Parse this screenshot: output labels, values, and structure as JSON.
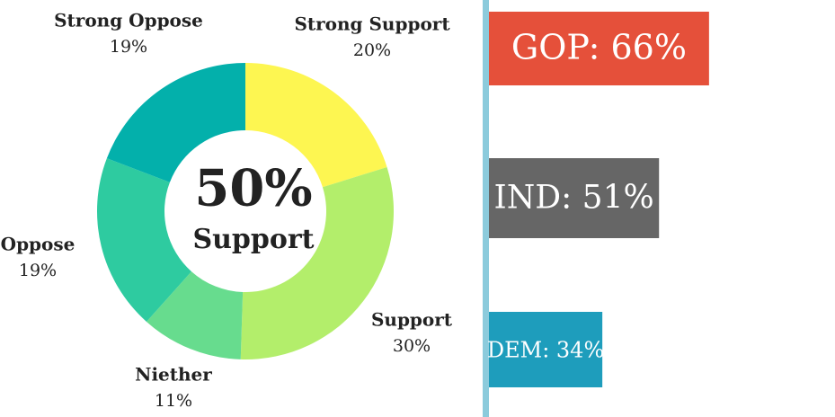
{
  "chart_data": [
    {
      "type": "pie",
      "hole": true,
      "categories": [
        "Strong Support",
        "Support",
        "Niether",
        "Oppose",
        "Strong Oppose"
      ],
      "values": [
        20,
        30,
        11,
        19,
        19
      ],
      "value_labels": [
        "20%",
        "30%",
        "11%",
        "19%",
        "19%"
      ],
      "colors": [
        "#fdf651",
        "#b3ee6b",
        "#67dc8e",
        "#2ecba0",
        "#03b0ab"
      ],
      "center_text": "50%",
      "center_subtext": "Support"
    },
    {
      "type": "hbar",
      "values": [
        66,
        51,
        34
      ],
      "value_labels": [
        "GOP: 66%",
        "IND: 51%",
        "DEM: 34%"
      ],
      "colors": [
        "#e5503a",
        "#666666",
        "#1e9dbc"
      ]
    }
  ]
}
